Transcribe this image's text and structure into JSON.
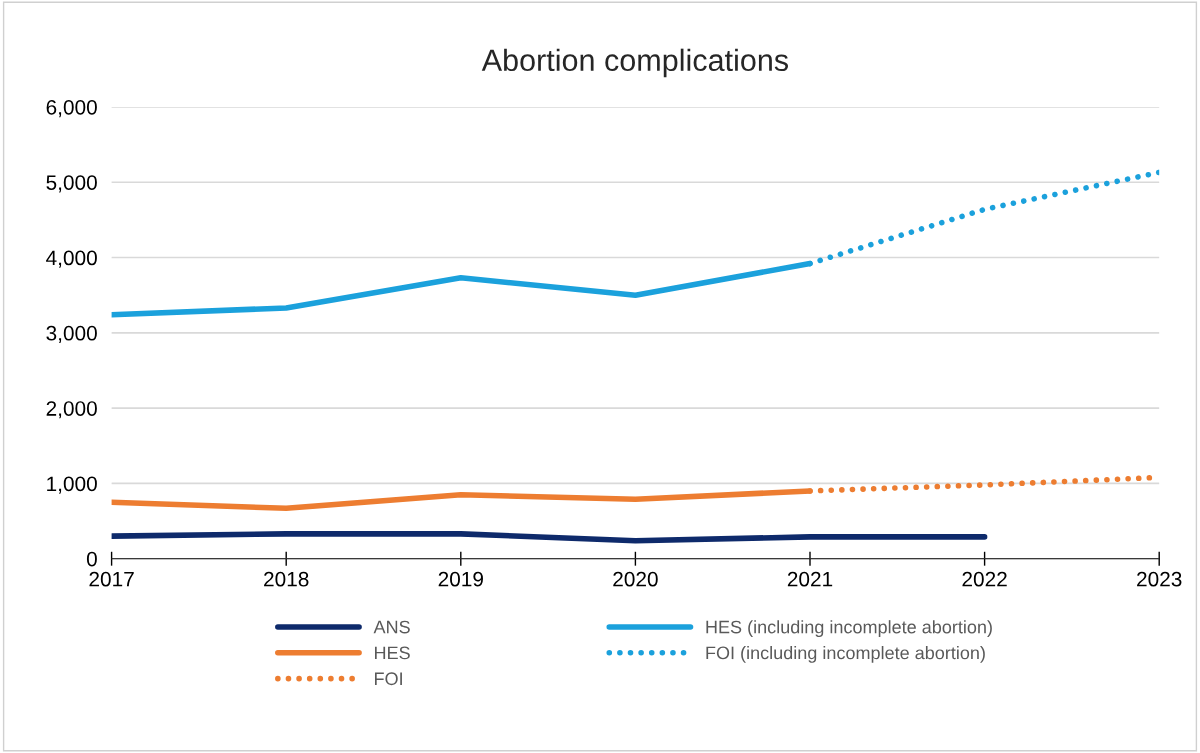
{
  "chart_data": {
    "type": "line",
    "title": "Abortion complications",
    "xlim": [
      2017,
      2023
    ],
    "xticks": [
      2017,
      2018,
      2019,
      2020,
      2021,
      2022,
      2023
    ],
    "ylim": [
      0,
      6000
    ],
    "yticks": [
      {
        "value": 0,
        "label": "0"
      },
      {
        "value": 1000,
        "label": "1,000"
      },
      {
        "value": 2000,
        "label": "2,000"
      },
      {
        "value": 3000,
        "label": "3,000"
      },
      {
        "value": 4000,
        "label": "4,000"
      },
      {
        "value": 5000,
        "label": "5,000"
      },
      {
        "value": 6000,
        "label": "6,000"
      }
    ],
    "grid": "y",
    "legend": "bottom",
    "marker": "none",
    "series": [
      {
        "name": "ANS",
        "color": "#0e2a6b",
        "line_style": "solid",
        "x": [
          2017,
          2018,
          2019,
          2020,
          2021,
          2022
        ],
        "values": [
          300,
          330,
          330,
          240,
          290,
          290
        ]
      },
      {
        "name": "HES",
        "color": "#ed7d31",
        "line_style": "solid",
        "x": [
          2017,
          2018,
          2019,
          2020,
          2021
        ],
        "values": [
          750,
          670,
          850,
          790,
          900
        ]
      },
      {
        "name": "FOI",
        "color": "#ed7d31",
        "line_style": "dotted",
        "x": [
          2021,
          2022,
          2023
        ],
        "values": [
          900,
          980,
          1080
        ]
      },
      {
        "name": "HES (including incomplete abortion)",
        "color": "#1ba1dc",
        "line_style": "solid",
        "x": [
          2017,
          2018,
          2019,
          2020,
          2021
        ],
        "values": [
          3240,
          3330,
          3730,
          3500,
          3920
        ]
      },
      {
        "name": "FOI (including incomplete abortion)",
        "color": "#1ba1dc",
        "line_style": "dotted",
        "x": [
          2021,
          2022,
          2023
        ],
        "values": [
          3920,
          4640,
          5130
        ]
      }
    ]
  }
}
